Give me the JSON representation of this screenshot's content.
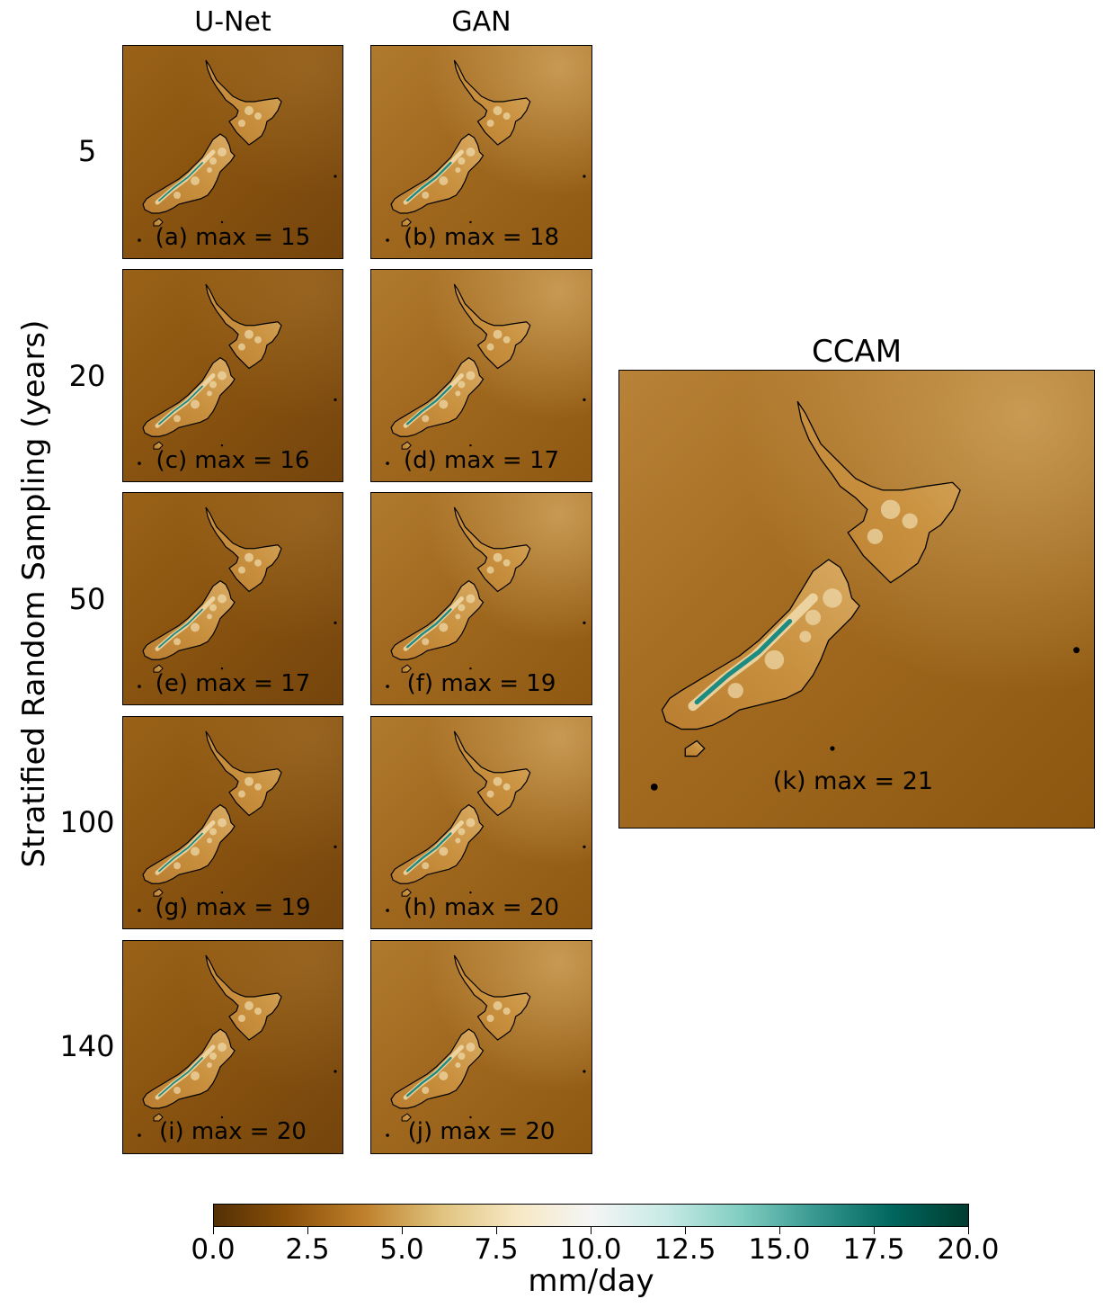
{
  "figure": {
    "column_titles": [
      "U-Net",
      "GAN"
    ],
    "right_title": "CCAM",
    "row_axis_label": "Stratified Random Sampling (years)",
    "row_labels": [
      "5",
      "20",
      "50",
      "100",
      "140"
    ]
  },
  "panels": [
    {
      "label": "(a) max = 15",
      "model": "U-Net",
      "years": "5",
      "max": 15
    },
    {
      "label": "(b) max = 18",
      "model": "GAN",
      "years": "5",
      "max": 18
    },
    {
      "label": "(c) max = 16",
      "model": "U-Net",
      "years": "20",
      "max": 16
    },
    {
      "label": "(d) max = 17",
      "model": "GAN",
      "years": "20",
      "max": 17
    },
    {
      "label": "(e) max = 17",
      "model": "U-Net",
      "years": "50",
      "max": 17
    },
    {
      "label": "(f) max = 19",
      "model": "GAN",
      "years": "50",
      "max": 19
    },
    {
      "label": "(g) max = 19",
      "model": "U-Net",
      "years": "100",
      "max": 19
    },
    {
      "label": "(h) max = 20",
      "model": "GAN",
      "years": "100",
      "max": 20
    },
    {
      "label": "(i) max = 20",
      "model": "U-Net",
      "years": "140",
      "max": 20
    },
    {
      "label": "(j) max = 20",
      "model": "GAN",
      "years": "140",
      "max": 20
    },
    {
      "label": "(k) max = 21",
      "model": "CCAM",
      "years": "",
      "max": 21
    }
  ],
  "colorbar": {
    "label": "mm/day",
    "ticks": [
      "0.0",
      "2.5",
      "5.0",
      "7.5",
      "10.0",
      "12.5",
      "15.0",
      "17.5",
      "20.0"
    ],
    "range": [
      0,
      20
    ],
    "colormap": "BrBG",
    "colors": [
      "#543005",
      "#8c510a",
      "#bf812d",
      "#dfc27d",
      "#f6e8c3",
      "#f5f5f5",
      "#c7eae5",
      "#80cdc1",
      "#35978f",
      "#01665e",
      "#003c30"
    ]
  },
  "colors": {
    "ocean_unet": "#8a5410",
    "ocean_gan": "#9a6218",
    "land": "#c8903e",
    "land_highlight": "#f0dcae",
    "ridge": "#1c8b82",
    "coastline": "#000000"
  }
}
